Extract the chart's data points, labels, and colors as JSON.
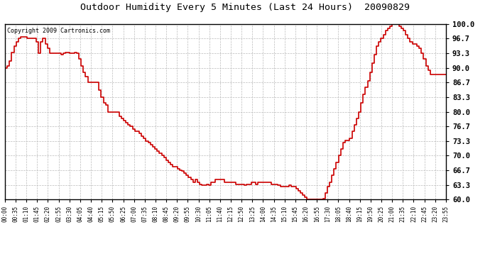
{
  "title": "Outdoor Humidity Every 5 Minutes (Last 24 Hours)  20090829",
  "copyright": "Copyright 2009 Cartronics.com",
  "line_color": "#cc0000",
  "bg_color": "#ffffff",
  "grid_color": "#bbbbbb",
  "ylim": [
    60.0,
    100.0
  ],
  "yticks": [
    60.0,
    63.3,
    66.7,
    70.0,
    73.3,
    76.7,
    80.0,
    83.3,
    86.7,
    90.0,
    93.3,
    96.7,
    100.0
  ],
  "ytick_labels": [
    "60.0",
    "63.3",
    "66.7",
    "70.0",
    "73.3",
    "76.7",
    "80.0",
    "83.3",
    "86.7",
    "90.0",
    "93.3",
    "96.7",
    "100.0"
  ],
  "xtick_labels": [
    "00:00",
    "00:35",
    "01:10",
    "01:45",
    "02:20",
    "02:55",
    "03:30",
    "04:05",
    "04:40",
    "05:15",
    "05:50",
    "06:25",
    "07:00",
    "07:35",
    "08:10",
    "08:45",
    "09:20",
    "09:55",
    "10:30",
    "11:05",
    "11:40",
    "12:15",
    "12:50",
    "13:25",
    "14:00",
    "14:35",
    "15:10",
    "15:45",
    "16:20",
    "16:55",
    "17:30",
    "18:05",
    "18:40",
    "19:15",
    "19:50",
    "20:25",
    "21:00",
    "21:35",
    "22:10",
    "22:45",
    "23:20",
    "23:55"
  ],
  "humidity_values": [
    90.0,
    90.5,
    91.5,
    93.5,
    95.0,
    96.0,
    96.7,
    97.0,
    97.0,
    97.0,
    96.7,
    96.7,
    96.7,
    96.7,
    96.0,
    93.3,
    96.0,
    96.7,
    95.5,
    94.5,
    93.3,
    93.3,
    93.3,
    93.3,
    93.3,
    93.0,
    93.3,
    93.5,
    93.5,
    93.3,
    93.3,
    93.5,
    93.3,
    92.0,
    90.5,
    89.0,
    88.0,
    86.7,
    86.7,
    86.7,
    86.7,
    86.7,
    85.0,
    83.3,
    82.0,
    81.5,
    80.0,
    80.0,
    80.0,
    80.0,
    80.0,
    79.0,
    78.5,
    78.0,
    77.5,
    77.0,
    76.7,
    76.0,
    75.5,
    75.5,
    75.0,
    74.5,
    74.0,
    73.3,
    73.0,
    72.5,
    72.0,
    71.5,
    71.0,
    70.5,
    70.0,
    69.5,
    69.0,
    68.5,
    68.0,
    67.5,
    67.5,
    67.0,
    66.7,
    66.5,
    66.0,
    65.5,
    65.0,
    64.5,
    64.0,
    64.5,
    64.0,
    63.5,
    63.3,
    63.3,
    63.5,
    63.3,
    64.0,
    64.0,
    64.5,
    64.5,
    64.5,
    64.5,
    64.0,
    64.0,
    64.0,
    64.0,
    64.0,
    63.5,
    63.5,
    63.5,
    63.5,
    63.3,
    63.5,
    63.5,
    64.0,
    64.0,
    63.5,
    64.0,
    64.0,
    64.0,
    64.0,
    64.0,
    64.0,
    63.5,
    63.5,
    63.5,
    63.3,
    63.0,
    63.0,
    63.0,
    63.0,
    63.3,
    63.0,
    63.0,
    62.5,
    62.0,
    61.5,
    61.0,
    60.5,
    60.0,
    60.0,
    60.0,
    60.0,
    60.0,
    60.0,
    60.0,
    60.2,
    61.5,
    63.0,
    64.0,
    65.5,
    67.0,
    68.5,
    70.0,
    71.5,
    73.0,
    73.5,
    73.5,
    74.0,
    75.5,
    77.0,
    78.5,
    80.0,
    82.0,
    84.0,
    85.5,
    87.0,
    89.0,
    91.0,
    93.0,
    95.0,
    96.0,
    96.7,
    97.5,
    98.5,
    99.0,
    99.5,
    100.0,
    100.0,
    100.0,
    99.5,
    99.0,
    98.5,
    97.5,
    96.7,
    96.0,
    95.5,
    95.5,
    95.0,
    94.5,
    93.3,
    92.0,
    90.5,
    89.5,
    88.5,
    88.5,
    88.5,
    88.5,
    88.5,
    88.5,
    88.5,
    88.5
  ]
}
